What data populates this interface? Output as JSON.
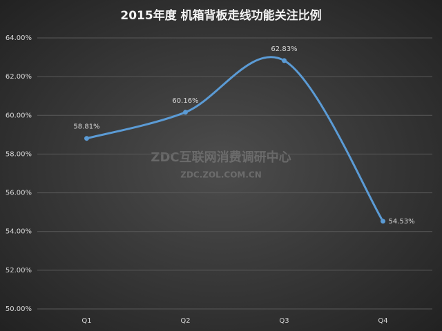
{
  "chart_data": {
    "type": "line",
    "title": "2015年度 机箱背板走线功能关注比例",
    "categories": [
      "Q1",
      "Q2",
      "Q3",
      "Q4"
    ],
    "series": [
      {
        "name": "关注比例",
        "color": "#5b9bd5",
        "values": [
          58.81,
          60.16,
          62.83,
          54.53
        ],
        "value_labels": [
          "58.81%",
          "60.16%",
          "62.83%",
          "54.53%"
        ]
      }
    ],
    "ylim": [
      50,
      64
    ],
    "yticks": [
      {
        "value": 50,
        "label": "50.00%"
      },
      {
        "value": 52,
        "label": "52.00%"
      },
      {
        "value": 54,
        "label": "54.00%"
      },
      {
        "value": 56,
        "label": "56.00%"
      },
      {
        "value": 58,
        "label": "58.00%"
      },
      {
        "value": 60,
        "label": "60.00%"
      },
      {
        "value": 62,
        "label": "62.00%"
      },
      {
        "value": 64,
        "label": "64.00%"
      }
    ],
    "grid": true,
    "smooth": true,
    "annotations": [
      "ZDC互联网消费调研中心",
      "ZDC.ZOL.COM.CN"
    ]
  }
}
